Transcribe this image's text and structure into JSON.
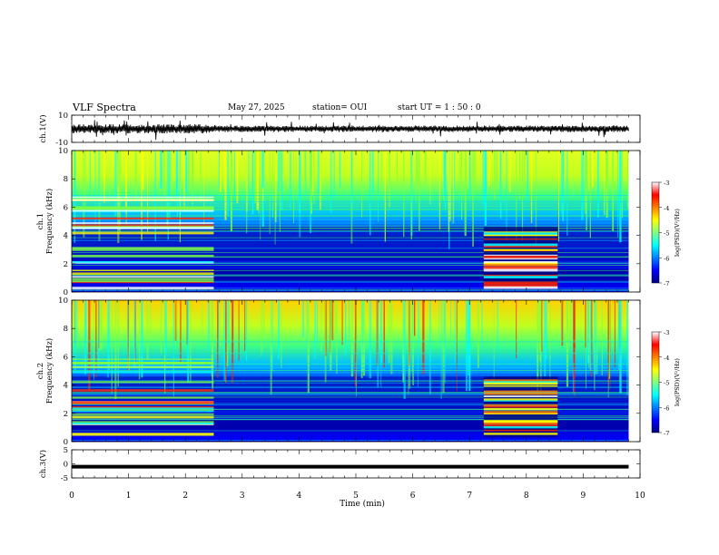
{
  "header": {
    "title": "VLF Spectra",
    "date": "May 27, 2025",
    "station": "station= OUI",
    "start": "start UT = 1 : 50 : 0"
  },
  "chart_data": [
    {
      "type": "line",
      "title": "",
      "ylabel": "ch.1(V)",
      "xlim": [
        0,
        10
      ],
      "ylim": [
        -10,
        10
      ],
      "yticks": [
        "10",
        "-10"
      ],
      "series": [
        {
          "note": "dense waveform trace",
          "x": [
            0,
            9.8
          ],
          "amplitude_range": [
            -2,
            2
          ]
        }
      ]
    },
    {
      "type": "heatmap",
      "title": "",
      "ylabel_channel": "ch.1",
      "ylabel": "Frequency (kHz)",
      "xlim": [
        0,
        9.8
      ],
      "ylim": [
        0,
        10
      ],
      "yticks": [
        "0",
        "2",
        "4",
        "6",
        "8",
        "10"
      ],
      "colorbar": {
        "label": "log(PSD)(V²/Hz)",
        "range": [
          -7,
          -3
        ],
        "ticks": [
          "-3",
          "-4",
          "-5",
          "-6",
          "-7"
        ]
      }
    },
    {
      "type": "heatmap",
      "title": "",
      "ylabel_channel": "ch.2",
      "ylabel": "Frequency (kHz)",
      "xlim": [
        0,
        9.8
      ],
      "ylim": [
        0,
        10
      ],
      "yticks": [
        "0",
        "2",
        "4",
        "6",
        "8",
        "10"
      ],
      "colorbar": {
        "label": "log(PSD)(V²/Hz)",
        "range": [
          -7,
          -3
        ],
        "ticks": [
          "-3",
          "-4",
          "-5",
          "-6",
          "-7"
        ]
      }
    },
    {
      "type": "line",
      "title": "",
      "ylabel": "ch.3(V)",
      "xlim": [
        0,
        10
      ],
      "ylim": [
        -5,
        5
      ],
      "yticks": [
        "5",
        "0",
        "-5"
      ],
      "series": [
        {
          "note": "flat trace",
          "x": [
            0,
            9.8
          ],
          "y": [
            -1,
            -1
          ]
        }
      ]
    }
  ],
  "xaxis": {
    "label": "Time (min)",
    "ticks": [
      "0",
      "1",
      "2",
      "3",
      "4",
      "5",
      "6",
      "7",
      "8",
      "9",
      "10"
    ]
  },
  "colors": {
    "colormap": [
      "#000080",
      "#0000ff",
      "#0080ff",
      "#00ffff",
      "#80ff80",
      "#ffff00",
      "#ff8000",
      "#ff0000",
      "#ffffff"
    ]
  }
}
